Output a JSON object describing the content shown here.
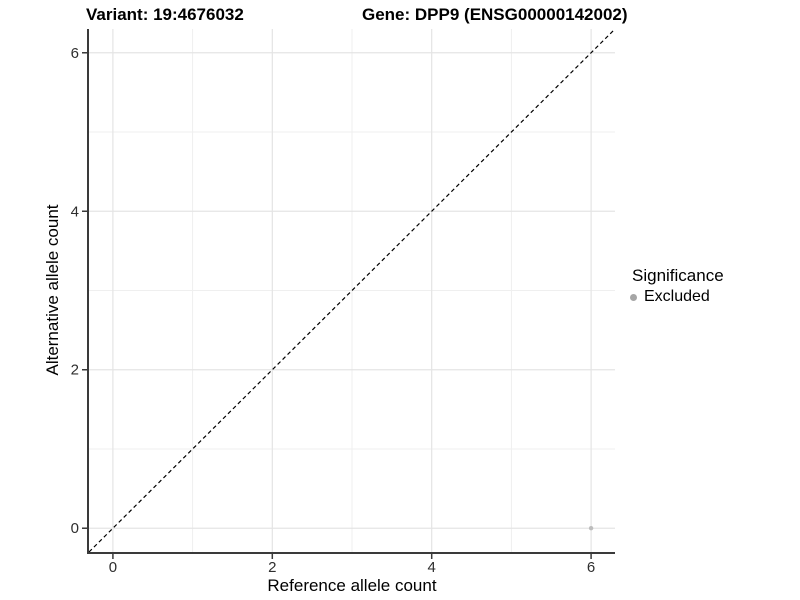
{
  "header": {
    "variant_title": "Variant: 19:4676032",
    "gene_title": "Gene: DPP9 (ENSG00000142002)"
  },
  "chart_data": {
    "type": "scatter",
    "title": "Variant: 19:4676032    Gene: DPP9 (ENSG00000142002)",
    "xlabel": "Reference allele count",
    "ylabel": "Alternative allele count",
    "xlim": [
      -0.3,
      6.3
    ],
    "ylim": [
      -0.3,
      6.3
    ],
    "x_ticks": [
      0,
      2,
      4,
      6
    ],
    "y_ticks": [
      0,
      2,
      4,
      6
    ],
    "x_minor_ticks": [
      1,
      3,
      5
    ],
    "y_minor_ticks": [
      1,
      3,
      5
    ],
    "grid": "on",
    "legend_position": "right",
    "series": [
      {
        "name": "Excluded",
        "marker": "circle",
        "color": "#bdbdbd",
        "points": [
          {
            "x": 6,
            "y": 0
          }
        ]
      }
    ],
    "reference_line": {
      "kind": "identity",
      "slope": 1,
      "intercept": 0,
      "line_style": "dashed",
      "color": "#000000"
    },
    "legend": {
      "title": "Significance",
      "items": [
        {
          "label": "Excluded",
          "color": "#a6a6a6",
          "marker": "circle"
        }
      ]
    }
  },
  "colors": {
    "background": "#ffffff",
    "grid_major": "#e4e4e4",
    "grid_minor": "#efefef",
    "axis_line": "#3a3a3a",
    "tick_mark": "#3a3a3a",
    "tick_text": "#2e2e2e",
    "point": "#bdbdbd",
    "legend_marker": "#a6a6a6",
    "dashed_line": "#000000"
  }
}
